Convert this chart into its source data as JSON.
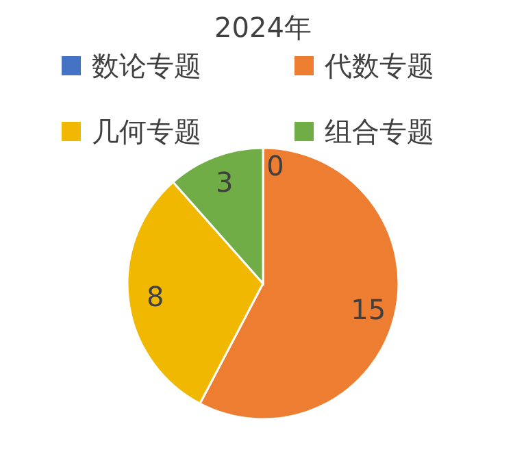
{
  "chart_data": {
    "type": "pie",
    "title": "2024年",
    "categories": [
      "数论专题",
      "代数专题",
      "几何专题",
      "组合专题"
    ],
    "values": [
      0,
      15,
      8,
      3
    ],
    "colors": [
      "#4472c4",
      "#ed7d31",
      "#f0b800",
      "#70ad47"
    ],
    "legend": "top",
    "data_labels": true,
    "value_labels": [
      "0",
      "15",
      "8",
      "3"
    ]
  }
}
